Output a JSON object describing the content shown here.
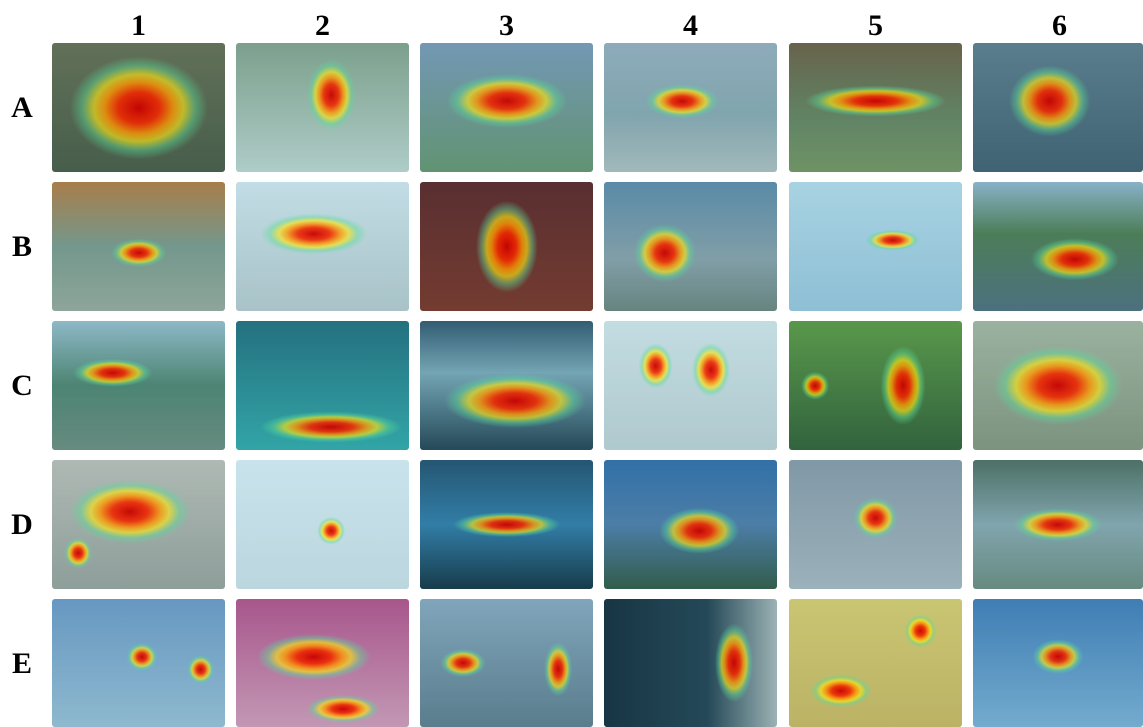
{
  "columns": [
    "1",
    "2",
    "3",
    "4",
    "5",
    "6"
  ],
  "rows": [
    "A",
    "B",
    "C",
    "D",
    "E"
  ]
}
